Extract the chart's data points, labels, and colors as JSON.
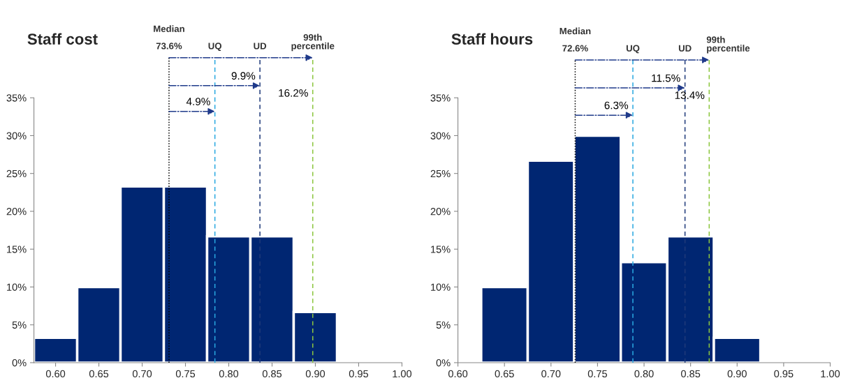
{
  "chart_data": [
    {
      "type": "histogram",
      "title": "Staff cost",
      "bins": [
        0.575,
        0.625,
        0.675,
        0.725,
        0.775,
        0.825,
        0.875,
        0.925
      ],
      "values": [
        3.3,
        10,
        23.3,
        23.3,
        16.7,
        16.7,
        6.7
      ],
      "color": "#002672",
      "xlim": [
        0.575,
        1.0
      ],
      "xticks": [
        {
          "value": 0.6,
          "label": "0.60"
        },
        {
          "value": 0.65,
          "label": "0.65"
        },
        {
          "value": 0.7,
          "label": "0.70"
        },
        {
          "value": 0.75,
          "label": "0.75"
        },
        {
          "value": 0.8,
          "label": "0.80"
        },
        {
          "value": 0.85,
          "label": "0.85"
        },
        {
          "value": 0.9,
          "label": "0.90"
        },
        {
          "value": 0.95,
          "label": "0.95"
        },
        {
          "value": 1.0,
          "label": "1.00"
        }
      ],
      "ylim": [
        0,
        35
      ],
      "yticks": [
        {
          "value": 0,
          "label": "0%"
        },
        {
          "value": 5,
          "label": "5%"
        },
        {
          "value": 10,
          "label": "10%"
        },
        {
          "value": 15,
          "label": "15%"
        },
        {
          "value": 20,
          "label": "20%"
        },
        {
          "value": 25,
          "label": "25%"
        },
        {
          "value": 30,
          "label": "30%"
        },
        {
          "value": 35,
          "label": "35%"
        }
      ],
      "ref_lines": [
        {
          "axis": "x",
          "value": 0.731,
          "label": "Median\n\n73.6%",
          "color": "#000000",
          "line_style": "dotted"
        },
        {
          "axis": "x",
          "value": 0.784,
          "label": "UQ",
          "color": "#29a8e0",
          "line_style": "dashed"
        },
        {
          "axis": "x",
          "value": 0.836,
          "label": "UD",
          "color": "#1f3a7a",
          "line_style": "dashed"
        },
        {
          "axis": "x",
          "value": 0.897,
          "label": "99th\npercentile",
          "color": "#8cc63f",
          "line_style": "dashed"
        }
      ],
      "annotations": [
        {
          "text": "4.9%",
          "x": 0.784,
          "y": 33.2
        },
        {
          "text": "9.9%",
          "x": 0.836,
          "y": 36.6
        },
        {
          "text": "16.2%",
          "x": 0.897,
          "y": 40.3
        }
      ],
      "grid": false
    },
    {
      "type": "histogram",
      "title": "Staff hours",
      "bins": [
        0.625,
        0.675,
        0.725,
        0.775,
        0.825,
        0.875,
        0.925
      ],
      "values": [
        10,
        26.7,
        30,
        13.3,
        16.7,
        3.3
      ],
      "color": "#002672",
      "xlim": [
        0.6,
        1.0
      ],
      "xticks": [
        {
          "value": 0.6,
          "label": "0.60"
        },
        {
          "value": 0.65,
          "label": "0.65"
        },
        {
          "value": 0.7,
          "label": "0.70"
        },
        {
          "value": 0.75,
          "label": "0.75"
        },
        {
          "value": 0.8,
          "label": "0.80"
        },
        {
          "value": 0.85,
          "label": "0.85"
        },
        {
          "value": 0.9,
          "label": "0.90"
        },
        {
          "value": 0.95,
          "label": "0.95"
        },
        {
          "value": 1.0,
          "label": "1.00"
        }
      ],
      "ylim": [
        0,
        35
      ],
      "yticks": [
        {
          "value": 0,
          "label": "0%"
        },
        {
          "value": 5,
          "label": "5%"
        },
        {
          "value": 10,
          "label": "10%"
        },
        {
          "value": 15,
          "label": "15%"
        },
        {
          "value": 20,
          "label": "20%"
        },
        {
          "value": 25,
          "label": "25%"
        },
        {
          "value": 30,
          "label": "30%"
        },
        {
          "value": 35,
          "label": "35%"
        }
      ],
      "ref_lines": [
        {
          "axis": "x",
          "value": 0.726,
          "label": "Median\n\n72.6%",
          "color": "#000000",
          "line_style": "dotted"
        },
        {
          "axis": "x",
          "value": 0.788,
          "label": "UQ",
          "color": "#29a8e0",
          "line_style": "dashed"
        },
        {
          "axis": "x",
          "value": 0.844,
          "label": "UD",
          "color": "#1f3a7a",
          "line_style": "dashed"
        },
        {
          "axis": "x",
          "value": 0.87,
          "label": "99th\npercentile",
          "color": "#8cc63f",
          "line_style": "dashed"
        }
      ],
      "annotations": [
        {
          "text": "6.3%",
          "x": 0.788,
          "y": 32.7
        },
        {
          "text": "11.5%",
          "x": 0.844,
          "y": 36.3
        },
        {
          "text": "13.4%",
          "x": 0.87,
          "y": 40.0
        }
      ],
      "grid": false
    }
  ]
}
